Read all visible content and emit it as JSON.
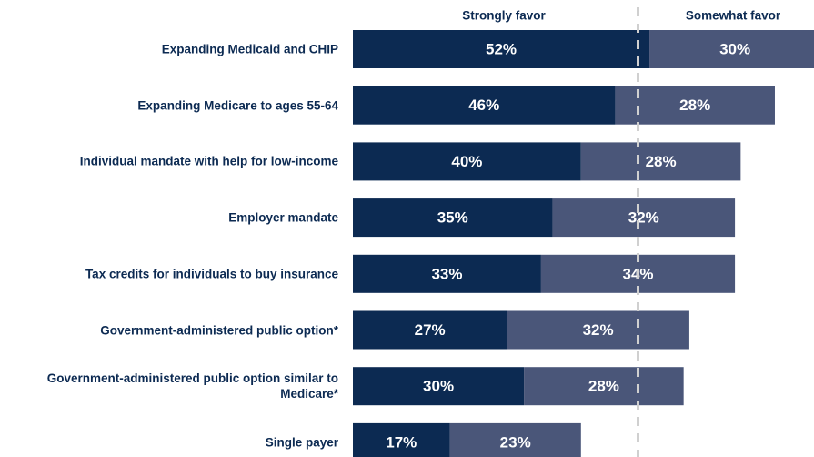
{
  "chart_data": {
    "type": "stacked-bar-horizontal",
    "categories": [
      "Expanding Medicaid and CHIP",
      "Expanding Medicare to ages 55-64",
      "Individual mandate with help for low-income",
      "Employer mandate",
      "Tax credits for individuals to buy insurance",
      "Government-administered public option*",
      "Government-administered public option similar to Medicare*",
      "Single payer"
    ],
    "series": [
      {
        "name": "Strongly favor",
        "color": "#0c2a52",
        "values": [
          52,
          46,
          40,
          35,
          33,
          27,
          30,
          17
        ],
        "value_labels": [
          "52%",
          "46%",
          "40%",
          "35%",
          "33%",
          "27%",
          "30%",
          "17%"
        ]
      },
      {
        "name": "Somewhat favor",
        "color": "#4a5679",
        "values": [
          30,
          28,
          28,
          32,
          34,
          32,
          28,
          23
        ],
        "value_labels": [
          "30%",
          "28%",
          "28%",
          "32%",
          "34%",
          "32%",
          "28%",
          "23%"
        ]
      }
    ],
    "xlim": [
      0,
      80
    ],
    "reference_line": 50
  }
}
